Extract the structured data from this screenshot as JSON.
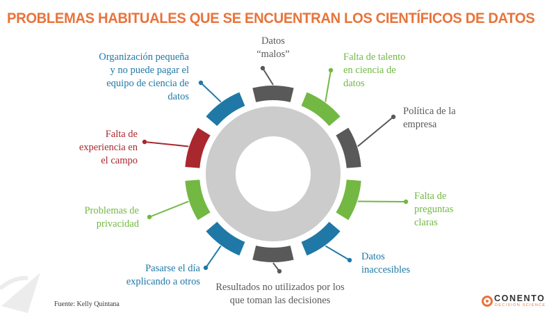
{
  "title": "PROBLEMAS HABITUALES QUE SE ENCUENTRAN LOS CIENTÍFICOS DE DATOS",
  "colors": {
    "title": "#e8743b",
    "green": "#72b843",
    "gray": "#595959",
    "blue": "#1f78a6",
    "red": "#a8282e",
    "ring": "#cccccc",
    "label_gray": "#595959",
    "label_green": "#72b843",
    "label_blue": "#1f78a6",
    "label_red": "#a8282e"
  },
  "problems": [
    {
      "text": "Datos\n“malos”",
      "color": "gray",
      "icon": "gray-segment"
    },
    {
      "text": "Falta de talento\nen ciencia de\ndatos",
      "color": "green",
      "icon": "green-segment"
    },
    {
      "text": "Política de la\nempresa",
      "color": "gray",
      "icon": "gray-segment"
    },
    {
      "text": "Falta de\npreguntas\nclaras",
      "color": "green",
      "icon": "green-segment"
    },
    {
      "text": "Datos\ninaccesibles",
      "color": "blue",
      "icon": "blue-segment"
    },
    {
      "text": "Resultados no utilizados por los\nque toman las decisiones",
      "color": "gray",
      "icon": "gray-segment"
    },
    {
      "text": "Pasarse el día\nexplicando a otros",
      "color": "blue",
      "icon": "blue-segment"
    },
    {
      "text": "Problemas de\nprivacidad",
      "color": "green",
      "icon": "green-segment"
    },
    {
      "text": "Falta de\nexperiencia en\nel campo",
      "color": "red",
      "icon": "red-segment"
    },
    {
      "text": "Organización pequeña\ny no puede pagar el\nequipo de ciencia de\ndatos",
      "color": "blue",
      "icon": "blue-segment"
    }
  ],
  "source": "Fuente:  Kelly Quintana",
  "logo": {
    "name": "CONENTO",
    "tagline": "DECISION SCIENCE"
  }
}
